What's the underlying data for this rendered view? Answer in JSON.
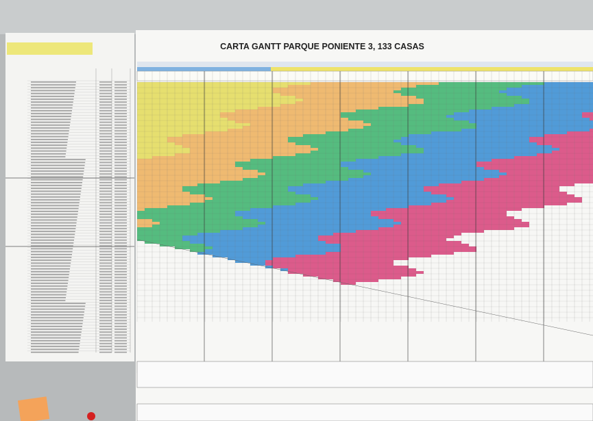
{
  "title": "CARTA GANTT PARQUE PONIENTE 3, 133 CASAS"
}
